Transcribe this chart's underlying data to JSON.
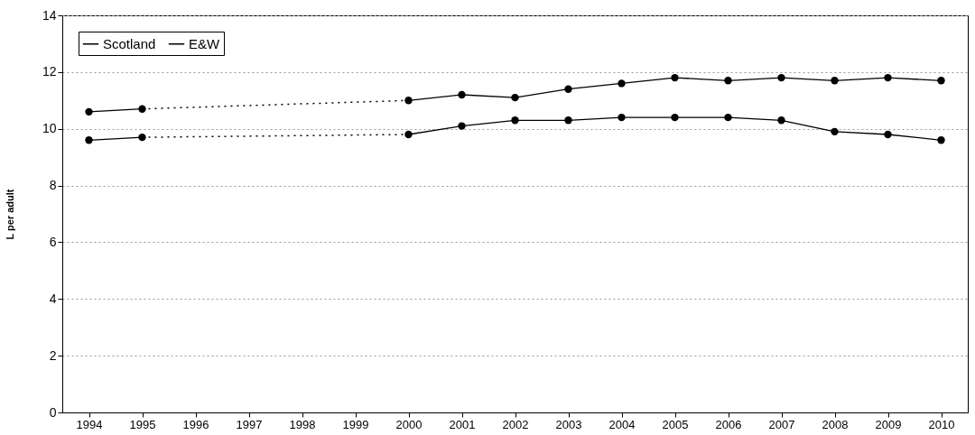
{
  "chart_data": {
    "type": "line",
    "ylabel": "L per adult",
    "categories": [
      "1994",
      "1995",
      "1996",
      "1997",
      "1998",
      "1999",
      "2000",
      "2001",
      "2002",
      "2003",
      "2004",
      "2005",
      "2006",
      "2007",
      "2008",
      "2009",
      "2010"
    ],
    "series": [
      {
        "name": "Scotland",
        "color": "#000000",
        "values": [
          10.6,
          10.7,
          null,
          null,
          null,
          null,
          11.0,
          11.2,
          11.1,
          11.4,
          11.6,
          11.8,
          11.7,
          11.8,
          11.7,
          11.8,
          11.7
        ]
      },
      {
        "name": "E&W",
        "color": "#000000",
        "values": [
          9.6,
          9.7,
          null,
          null,
          null,
          null,
          9.8,
          10.1,
          10.3,
          10.3,
          10.4,
          10.4,
          10.4,
          10.3,
          9.9,
          9.8,
          9.6
        ]
      }
    ],
    "ylim": [
      0,
      14
    ],
    "yticks": [
      0,
      2,
      4,
      6,
      8,
      10,
      12,
      14
    ],
    "grid": "y",
    "legend": "top left",
    "marker": "circle",
    "line_style": "solid"
  }
}
